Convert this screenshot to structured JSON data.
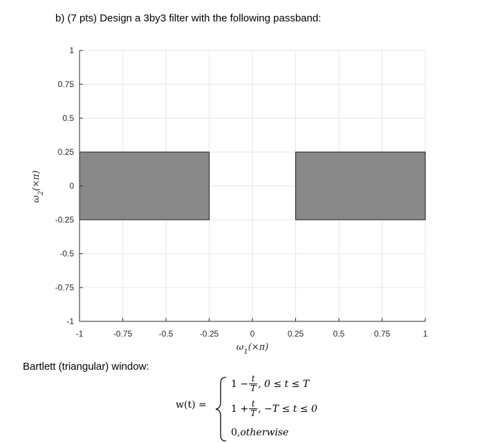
{
  "question": {
    "heading": "b) (7 pts) Design a 3by3 filter with the following passband:"
  },
  "chart_data": {
    "type": "area",
    "xlabel_symbol": "ω",
    "xlabel_sub": "1",
    "xlabel_unit": "(×π)",
    "ylabel_symbol": "ω",
    "ylabel_sub": "2",
    "ylabel_unit": "(×π)",
    "xlim": [
      -1,
      1
    ],
    "ylim": [
      -1,
      1
    ],
    "xticks": [
      -1,
      -0.75,
      -0.5,
      -0.25,
      0,
      0.25,
      0.5,
      0.75,
      1
    ],
    "xtick_labels": [
      "-1",
      "-0.75",
      "-0.5",
      "-0.25",
      "0",
      "0.25",
      "0.5",
      "0.75",
      "1"
    ],
    "yticks": [
      -1,
      -0.75,
      -0.5,
      -0.25,
      0,
      0.25,
      0.5,
      0.75,
      1
    ],
    "ytick_labels": [
      "-1",
      "-0.75",
      "-0.5",
      "-0.25",
      "0",
      "0.25",
      "0.5",
      "0.75",
      "1"
    ],
    "grid": true,
    "regions": [
      {
        "x": [
          -1,
          -0.25
        ],
        "y": [
          -0.25,
          0.25
        ]
      },
      {
        "x": [
          0.25,
          1
        ],
        "y": [
          -0.25,
          0.25
        ]
      }
    ],
    "colors": {
      "fill": "#898989",
      "edge": "#1a1a1a",
      "grid": "#e6e6e6",
      "axis": "#262626"
    }
  },
  "window": {
    "heading": "Bartlett (triangular) window:",
    "lhs": "w(t) =",
    "case1": {
      "prefix": "1 −",
      "num": "t",
      "den": "T",
      "suffix": ", 0 ≤ t ≤ T"
    },
    "case2": {
      "prefix": "1 +",
      "num": "t",
      "den": "T",
      "suffix": ", −T ≤ t ≤ 0"
    },
    "case3": {
      "prefix": "0, ",
      "text": "otherwise"
    }
  }
}
